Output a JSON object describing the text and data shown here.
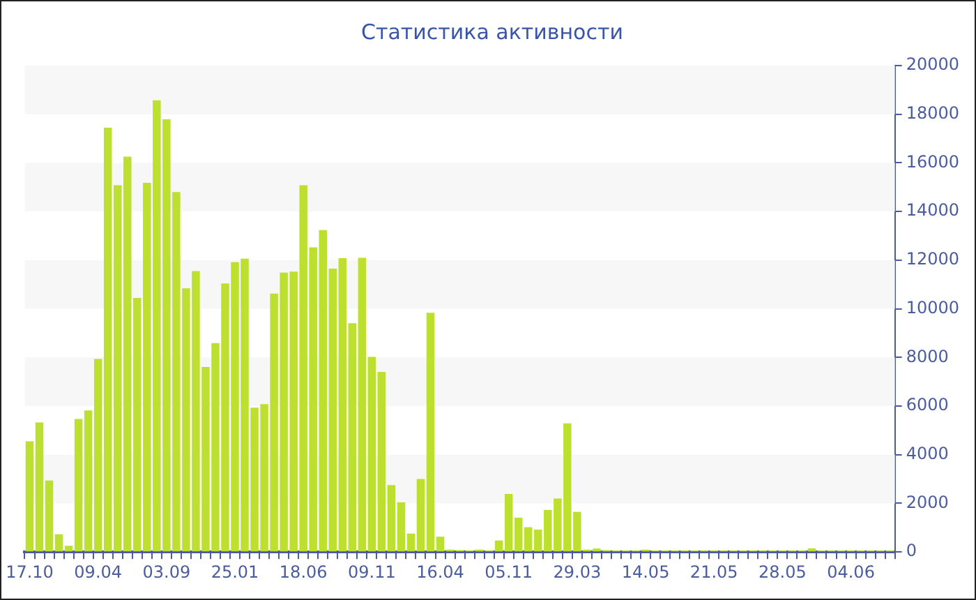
{
  "chart_data": {
    "type": "bar",
    "title": "Статистика активности",
    "categories": [
      "17.10",
      null,
      null,
      null,
      null,
      null,
      null,
      "09.04",
      null,
      null,
      null,
      null,
      null,
      null,
      "03.09",
      null,
      null,
      null,
      null,
      null,
      null,
      "25.01",
      null,
      null,
      null,
      null,
      null,
      null,
      "18.06",
      null,
      null,
      null,
      null,
      null,
      null,
      "09.11",
      null,
      null,
      null,
      null,
      null,
      null,
      "16.04",
      null,
      null,
      null,
      null,
      null,
      null,
      "05.11",
      null,
      null,
      null,
      null,
      null,
      null,
      "29.03",
      null,
      null,
      null,
      null,
      null,
      null,
      "14.05",
      null,
      null,
      null,
      null,
      null,
      null,
      "21.05",
      null,
      null,
      null,
      null,
      null,
      null,
      "28.05",
      null,
      null,
      null,
      null,
      null,
      null,
      "04.06",
      null,
      null,
      null,
      null
    ],
    "values": [
      4550,
      5330,
      2940,
      730,
      260,
      5470,
      5820,
      7940,
      17450,
      15080,
      16260,
      10450,
      15180,
      18570,
      17790,
      14800,
      10840,
      11550,
      7610,
      8590,
      11040,
      11920,
      12060,
      5940,
      6080,
      10630,
      11490,
      11530,
      15080,
      12530,
      13240,
      11650,
      12080,
      9410,
      12100,
      8020,
      7410,
      2750,
      2040,
      760,
      3000,
      9840,
      630,
      100,
      80,
      60,
      100,
      60,
      470,
      2390,
      1410,
      1020,
      920,
      1730,
      2200,
      5290,
      1650,
      100,
      140,
      80,
      60,
      60,
      60,
      100,
      60,
      60,
      60,
      60,
      60,
      60,
      60,
      60,
      60,
      60,
      60,
      60,
      60,
      60,
      60,
      60,
      150,
      60,
      60,
      60,
      60,
      60,
      60,
      60,
      60
    ],
    "color": "#bde030",
    "ylim": [
      0,
      20000
    ],
    "yticks": [
      0,
      2000,
      4000,
      6000,
      8000,
      10000,
      12000,
      14000,
      16000,
      18000,
      20000
    ],
    "bands": [
      {
        "axis": "y",
        "from": 2000,
        "to": 4000,
        "color": "#f7f7f7"
      },
      {
        "axis": "y",
        "from": 6000,
        "to": 8000,
        "color": "#f7f7f7"
      },
      {
        "axis": "y",
        "from": 10000,
        "to": 12000,
        "color": "#f7f7f7"
      },
      {
        "axis": "y",
        "from": 14000,
        "to": 16000,
        "color": "#f7f7f7"
      },
      {
        "axis": "y",
        "from": 18000,
        "to": 20000,
        "color": "#f7f7f7"
      }
    ],
    "legend": false
  }
}
